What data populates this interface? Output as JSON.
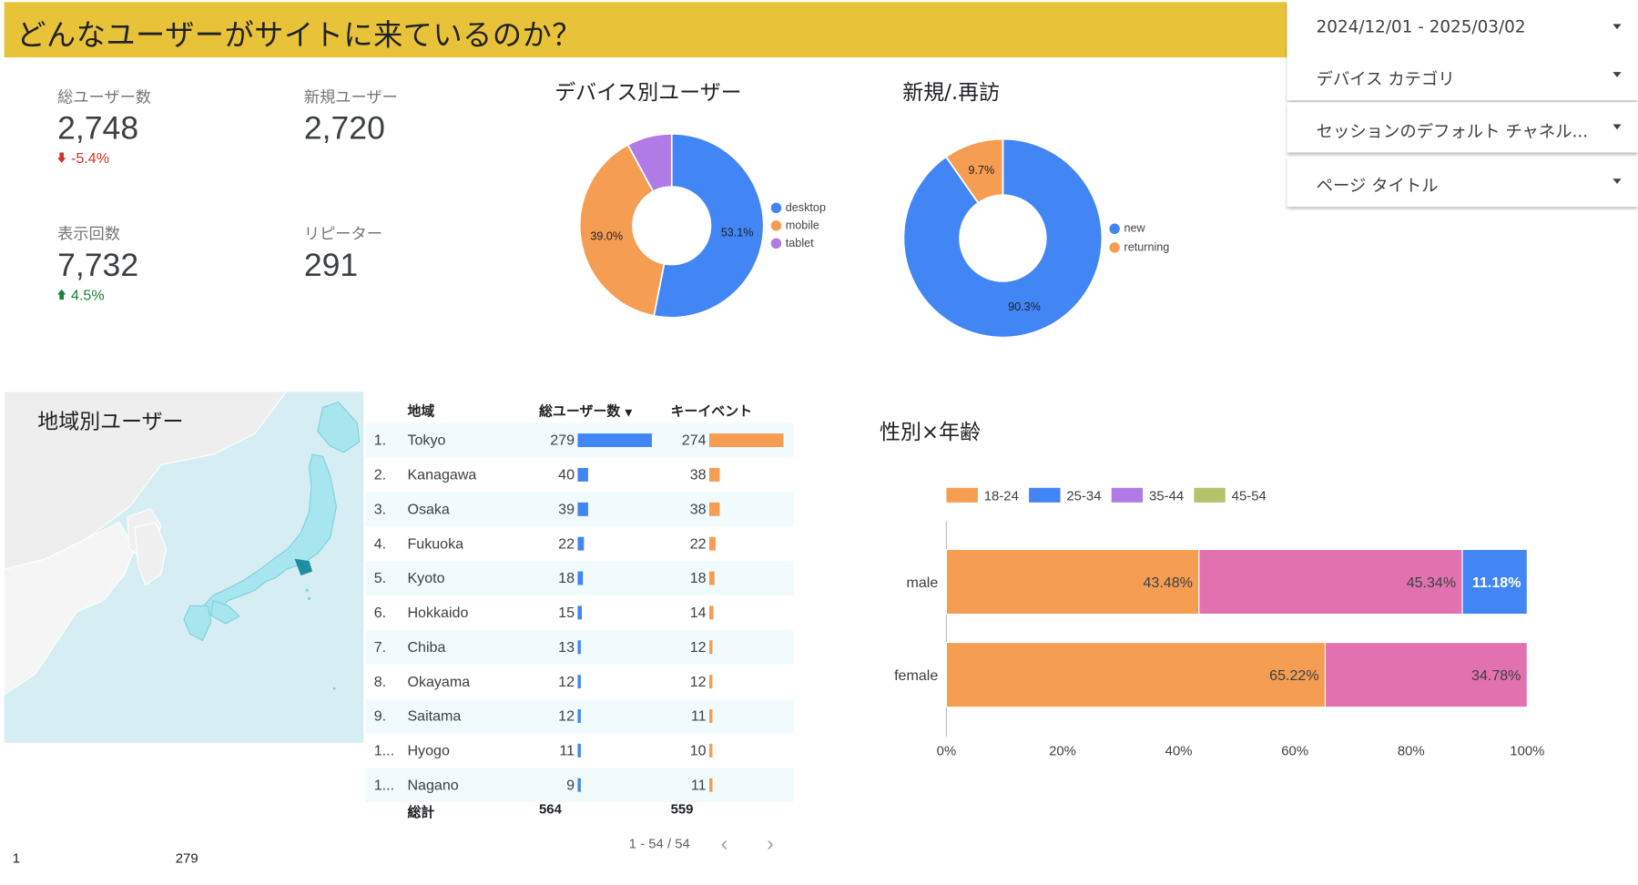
{
  "header": {
    "title": "どんなユーザーがサイトに来ているのか？"
  },
  "filters": [
    {
      "label": "2024/12/01 - 2025/03/02"
    },
    {
      "label": "デバイス カテゴリ"
    },
    {
      "label": "セッションのデフォルト チャネル..."
    },
    {
      "label": "ページ タイトル"
    }
  ],
  "kpis": {
    "total_users": {
      "label": "総ユーザー数",
      "value": "2,748",
      "delta": "-5.4%"
    },
    "new_users": {
      "label": "新規ユーザー",
      "value": "2,720"
    },
    "pageviews": {
      "label": "表示回数",
      "value": "7,732",
      "delta": "4.5%"
    },
    "repeaters": {
      "label": "リピーター",
      "value": "291"
    }
  },
  "colors": {
    "header": "#e8c33a",
    "blue": "#4285f4",
    "orange": "#f59d52",
    "purple": "#b07be6",
    "pink": "#e271b0",
    "olive": "#b3c46a",
    "down": "#d93025",
    "up": "#188038"
  },
  "device_chart": {
    "title": "デバイス別ユーザー",
    "chart_data": {
      "type": "pie",
      "categories": [
        "desktop",
        "mobile",
        "tablet"
      ],
      "values": [
        53.1,
        39.0,
        7.9
      ],
      "labels": [
        "53.1%",
        "39.0%",
        ""
      ]
    }
  },
  "newret_chart": {
    "title": "新規/.再訪",
    "chart_data": {
      "type": "pie",
      "categories": [
        "new",
        "returning"
      ],
      "values": [
        90.3,
        9.7
      ],
      "labels": [
        "90.3%",
        "9.7%"
      ]
    }
  },
  "map": {
    "title": "地域別ユーザー",
    "legend_min": "1",
    "legend_max": "279"
  },
  "region_table": {
    "headers": {
      "region": "地域",
      "users": "総ユーザー数",
      "events": "キーイベント"
    },
    "rows": [
      {
        "rank": "1.",
        "region": "Tokyo",
        "users": 279,
        "events": 274
      },
      {
        "rank": "2.",
        "region": "Kanagawa",
        "users": 40,
        "events": 38
      },
      {
        "rank": "3.",
        "region": "Osaka",
        "users": 39,
        "events": 38
      },
      {
        "rank": "4.",
        "region": "Fukuoka",
        "users": 22,
        "events": 22
      },
      {
        "rank": "5.",
        "region": "Kyoto",
        "users": 18,
        "events": 18
      },
      {
        "rank": "6.",
        "region": "Hokkaido",
        "users": 15,
        "events": 14
      },
      {
        "rank": "7.",
        "region": "Chiba",
        "users": 13,
        "events": 12
      },
      {
        "rank": "8.",
        "region": "Okayama",
        "users": 12,
        "events": 12
      },
      {
        "rank": "9.",
        "region": "Saitama",
        "users": 12,
        "events": 11
      },
      {
        "rank": "1...",
        "region": "Hyogo",
        "users": 11,
        "events": 10
      },
      {
        "rank": "1...",
        "region": "Nagano",
        "users": 9,
        "events": 11
      }
    ],
    "total": {
      "label": "総計",
      "users": "564",
      "events": "559"
    },
    "pagination": "1 - 54 / 54"
  },
  "gender_age_chart": {
    "title": "性別×年齢",
    "chart_data": {
      "type": "bar",
      "orientation": "horizontal",
      "stacked": "percent",
      "categories": [
        "male",
        "female"
      ],
      "series": [
        {
          "name": "18-24",
          "color": "#f59d52",
          "values": [
            43.48,
            65.22
          ],
          "labels": [
            "43.48%",
            "65.22%"
          ]
        },
        {
          "name": "25-34",
          "color": "#4285f4",
          "values": [
            0,
            0
          ],
          "labels": [
            "",
            ""
          ]
        },
        {
          "name": "35-44",
          "color": "#b07be6",
          "values": [
            0,
            0
          ],
          "labels": [
            "",
            ""
          ]
        },
        {
          "name": "45-54",
          "color": "#b3c46a",
          "values": [
            0,
            0
          ],
          "labels": [
            "",
            ""
          ]
        },
        {
          "name": "",
          "color": "#e271b0",
          "values": [
            45.34,
            34.78
          ],
          "labels": [
            "45.34%",
            "34.78%"
          ]
        },
        {
          "name": "",
          "color": "#4285f4",
          "values": [
            11.18,
            0
          ],
          "labels": [
            "11.18%",
            ""
          ]
        }
      ],
      "xticks": [
        "0%",
        "20%",
        "40%",
        "60%",
        "80%",
        "100%"
      ],
      "xlim": [
        0,
        100
      ]
    }
  }
}
